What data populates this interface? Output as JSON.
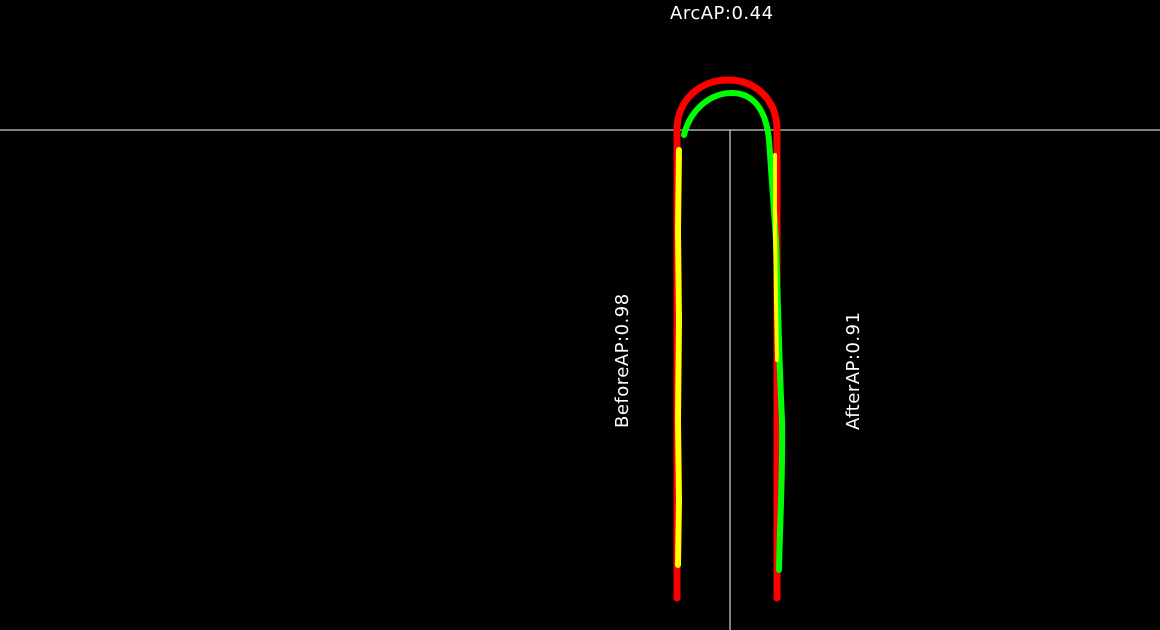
{
  "labels": {
    "arc": "ArcAP:0.44",
    "before": "BeforeAP:0.98",
    "after": "AfterAP:0.91"
  },
  "colors": {
    "background": "#000000",
    "guide_lines": "#ffffff",
    "ground_truth": "#ff0000",
    "prediction_overlap": "#ffff00",
    "prediction": "#00ff00",
    "text": "#ffffff"
  }
}
